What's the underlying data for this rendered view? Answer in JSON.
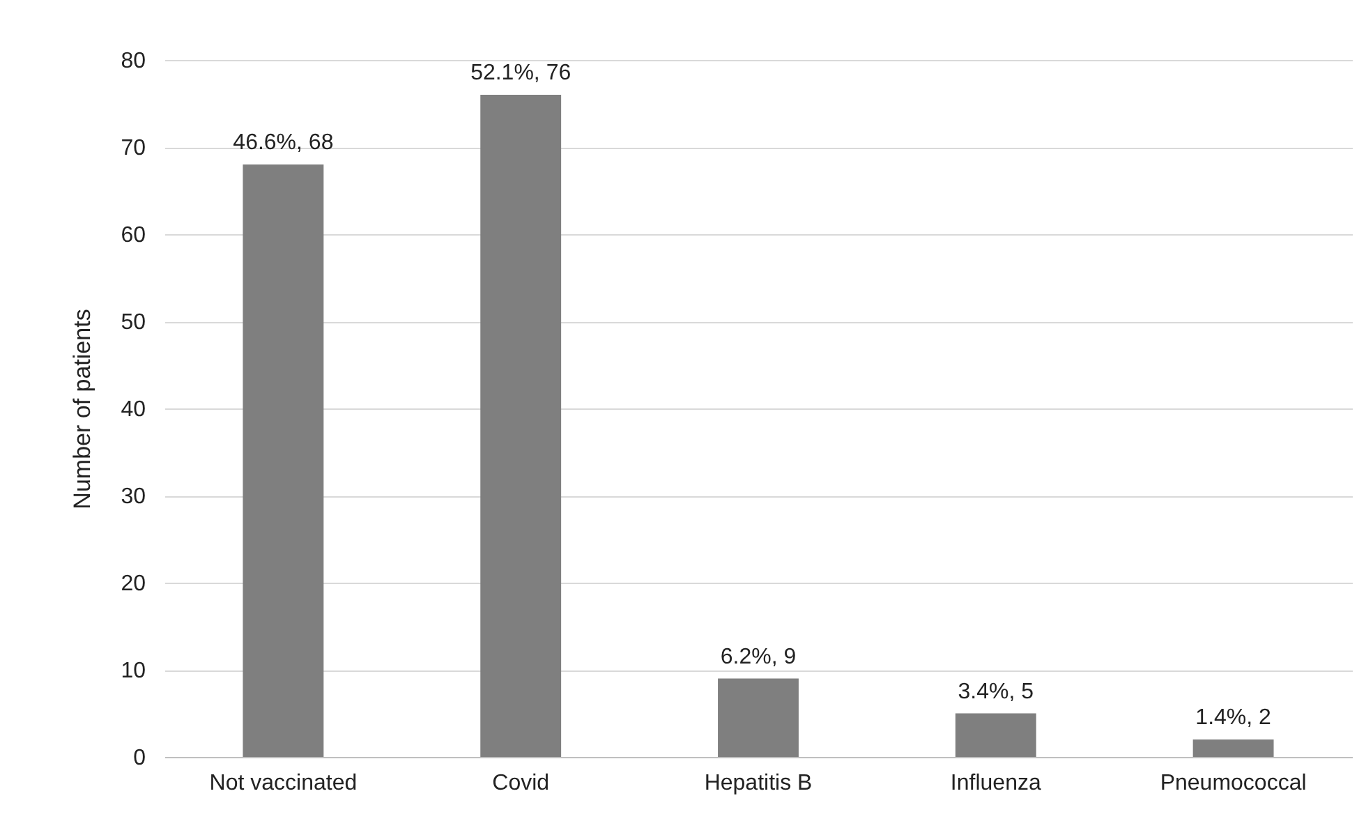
{
  "chart_data": {
    "type": "bar",
    "ylabel": "Number of patients",
    "categories": [
      "Not vaccinated",
      "Covid",
      "Hepatitis B",
      "Influenza",
      "Pneumococcal"
    ],
    "values": [
      68,
      76,
      9,
      5,
      2
    ],
    "value_labels": [
      "46.6%, 68",
      "52.1%, 76",
      "6.2%, 9",
      "3.4%, 5",
      "1.4%, 2"
    ],
    "color": "#7f7f7f",
    "ylim": [
      0,
      80
    ],
    "yticks": [
      0,
      10,
      20,
      30,
      40,
      50,
      60,
      70,
      80
    ],
    "grid": "y"
  }
}
